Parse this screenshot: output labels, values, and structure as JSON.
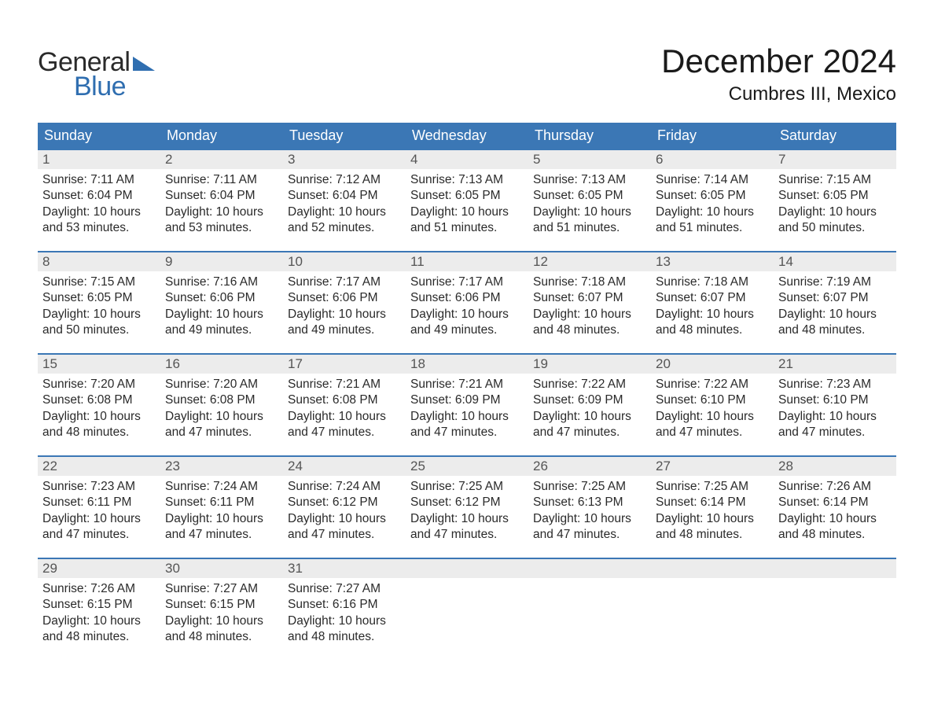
{
  "logo": {
    "word1": "General",
    "word2": "Blue",
    "tri_color": "#2f6eb0"
  },
  "title": {
    "month": "December 2024",
    "location": "Cumbres III, Mexico"
  },
  "styling": {
    "header_bg": "#3b77b5",
    "header_fg": "#ffffff",
    "daynum_bg": "#ececec",
    "daynum_fg": "#555555",
    "row_border": "#3b77b5",
    "body_fg": "#2a2a2a",
    "page_bg": "#ffffff",
    "title_fontsize": 42,
    "location_fontsize": 24,
    "header_fontsize": 18,
    "body_fontsize": 15.5
  },
  "calendar": {
    "day_headers": [
      "Sunday",
      "Monday",
      "Tuesday",
      "Wednesday",
      "Thursday",
      "Friday",
      "Saturday"
    ],
    "weeks": [
      [
        {
          "num": "1",
          "sunrise": "Sunrise: 7:11 AM",
          "sunset": "Sunset: 6:04 PM",
          "day1": "Daylight: 10 hours",
          "day2": "and 53 minutes."
        },
        {
          "num": "2",
          "sunrise": "Sunrise: 7:11 AM",
          "sunset": "Sunset: 6:04 PM",
          "day1": "Daylight: 10 hours",
          "day2": "and 53 minutes."
        },
        {
          "num": "3",
          "sunrise": "Sunrise: 7:12 AM",
          "sunset": "Sunset: 6:04 PM",
          "day1": "Daylight: 10 hours",
          "day2": "and 52 minutes."
        },
        {
          "num": "4",
          "sunrise": "Sunrise: 7:13 AM",
          "sunset": "Sunset: 6:05 PM",
          "day1": "Daylight: 10 hours",
          "day2": "and 51 minutes."
        },
        {
          "num": "5",
          "sunrise": "Sunrise: 7:13 AM",
          "sunset": "Sunset: 6:05 PM",
          "day1": "Daylight: 10 hours",
          "day2": "and 51 minutes."
        },
        {
          "num": "6",
          "sunrise": "Sunrise: 7:14 AM",
          "sunset": "Sunset: 6:05 PM",
          "day1": "Daylight: 10 hours",
          "day2": "and 51 minutes."
        },
        {
          "num": "7",
          "sunrise": "Sunrise: 7:15 AM",
          "sunset": "Sunset: 6:05 PM",
          "day1": "Daylight: 10 hours",
          "day2": "and 50 minutes."
        }
      ],
      [
        {
          "num": "8",
          "sunrise": "Sunrise: 7:15 AM",
          "sunset": "Sunset: 6:05 PM",
          "day1": "Daylight: 10 hours",
          "day2": "and 50 minutes."
        },
        {
          "num": "9",
          "sunrise": "Sunrise: 7:16 AM",
          "sunset": "Sunset: 6:06 PM",
          "day1": "Daylight: 10 hours",
          "day2": "and 49 minutes."
        },
        {
          "num": "10",
          "sunrise": "Sunrise: 7:17 AM",
          "sunset": "Sunset: 6:06 PM",
          "day1": "Daylight: 10 hours",
          "day2": "and 49 minutes."
        },
        {
          "num": "11",
          "sunrise": "Sunrise: 7:17 AM",
          "sunset": "Sunset: 6:06 PM",
          "day1": "Daylight: 10 hours",
          "day2": "and 49 minutes."
        },
        {
          "num": "12",
          "sunrise": "Sunrise: 7:18 AM",
          "sunset": "Sunset: 6:07 PM",
          "day1": "Daylight: 10 hours",
          "day2": "and 48 minutes."
        },
        {
          "num": "13",
          "sunrise": "Sunrise: 7:18 AM",
          "sunset": "Sunset: 6:07 PM",
          "day1": "Daylight: 10 hours",
          "day2": "and 48 minutes."
        },
        {
          "num": "14",
          "sunrise": "Sunrise: 7:19 AM",
          "sunset": "Sunset: 6:07 PM",
          "day1": "Daylight: 10 hours",
          "day2": "and 48 minutes."
        }
      ],
      [
        {
          "num": "15",
          "sunrise": "Sunrise: 7:20 AM",
          "sunset": "Sunset: 6:08 PM",
          "day1": "Daylight: 10 hours",
          "day2": "and 48 minutes."
        },
        {
          "num": "16",
          "sunrise": "Sunrise: 7:20 AM",
          "sunset": "Sunset: 6:08 PM",
          "day1": "Daylight: 10 hours",
          "day2": "and 47 minutes."
        },
        {
          "num": "17",
          "sunrise": "Sunrise: 7:21 AM",
          "sunset": "Sunset: 6:08 PM",
          "day1": "Daylight: 10 hours",
          "day2": "and 47 minutes."
        },
        {
          "num": "18",
          "sunrise": "Sunrise: 7:21 AM",
          "sunset": "Sunset: 6:09 PM",
          "day1": "Daylight: 10 hours",
          "day2": "and 47 minutes."
        },
        {
          "num": "19",
          "sunrise": "Sunrise: 7:22 AM",
          "sunset": "Sunset: 6:09 PM",
          "day1": "Daylight: 10 hours",
          "day2": "and 47 minutes."
        },
        {
          "num": "20",
          "sunrise": "Sunrise: 7:22 AM",
          "sunset": "Sunset: 6:10 PM",
          "day1": "Daylight: 10 hours",
          "day2": "and 47 minutes."
        },
        {
          "num": "21",
          "sunrise": "Sunrise: 7:23 AM",
          "sunset": "Sunset: 6:10 PM",
          "day1": "Daylight: 10 hours",
          "day2": "and 47 minutes."
        }
      ],
      [
        {
          "num": "22",
          "sunrise": "Sunrise: 7:23 AM",
          "sunset": "Sunset: 6:11 PM",
          "day1": "Daylight: 10 hours",
          "day2": "and 47 minutes."
        },
        {
          "num": "23",
          "sunrise": "Sunrise: 7:24 AM",
          "sunset": "Sunset: 6:11 PM",
          "day1": "Daylight: 10 hours",
          "day2": "and 47 minutes."
        },
        {
          "num": "24",
          "sunrise": "Sunrise: 7:24 AM",
          "sunset": "Sunset: 6:12 PM",
          "day1": "Daylight: 10 hours",
          "day2": "and 47 minutes."
        },
        {
          "num": "25",
          "sunrise": "Sunrise: 7:25 AM",
          "sunset": "Sunset: 6:12 PM",
          "day1": "Daylight: 10 hours",
          "day2": "and 47 minutes."
        },
        {
          "num": "26",
          "sunrise": "Sunrise: 7:25 AM",
          "sunset": "Sunset: 6:13 PM",
          "day1": "Daylight: 10 hours",
          "day2": "and 47 minutes."
        },
        {
          "num": "27",
          "sunrise": "Sunrise: 7:25 AM",
          "sunset": "Sunset: 6:14 PM",
          "day1": "Daylight: 10 hours",
          "day2": "and 48 minutes."
        },
        {
          "num": "28",
          "sunrise": "Sunrise: 7:26 AM",
          "sunset": "Sunset: 6:14 PM",
          "day1": "Daylight: 10 hours",
          "day2": "and 48 minutes."
        }
      ],
      [
        {
          "num": "29",
          "sunrise": "Sunrise: 7:26 AM",
          "sunset": "Sunset: 6:15 PM",
          "day1": "Daylight: 10 hours",
          "day2": "and 48 minutes."
        },
        {
          "num": "30",
          "sunrise": "Sunrise: 7:27 AM",
          "sunset": "Sunset: 6:15 PM",
          "day1": "Daylight: 10 hours",
          "day2": "and 48 minutes."
        },
        {
          "num": "31",
          "sunrise": "Sunrise: 7:27 AM",
          "sunset": "Sunset: 6:16 PM",
          "day1": "Daylight: 10 hours",
          "day2": "and 48 minutes."
        },
        null,
        null,
        null,
        null
      ]
    ]
  }
}
